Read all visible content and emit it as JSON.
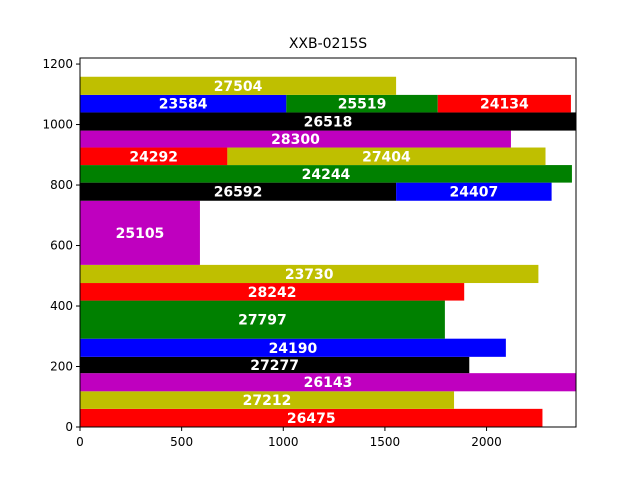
{
  "chart_data": {
    "type": "bar",
    "orientation": "horizontal",
    "title": "XXB-0215S",
    "xlabel": "",
    "ylabel": "",
    "xlim": [
      0,
      2440
    ],
    "ylim": [
      0,
      1220
    ],
    "xticks": [
      0,
      500,
      1000,
      1500,
      2000
    ],
    "yticks": [
      0,
      200,
      400,
      600,
      800,
      1000,
      1200
    ],
    "grid": false,
    "legend": "none",
    "bars": [
      {
        "label": "26475",
        "x_start": 0,
        "x_end": 2275,
        "y_start": 0,
        "y_end": 60,
        "color": "#ff0000"
      },
      {
        "label": "27212",
        "x_start": 0,
        "x_end": 1840,
        "y_start": 60,
        "y_end": 118,
        "color": "#bfbf00"
      },
      {
        "label": "26143",
        "x_start": 0,
        "x_end": 2440,
        "y_start": 118,
        "y_end": 178,
        "color": "#bf00bf"
      },
      {
        "label": "27277",
        "x_start": 0,
        "x_end": 1915,
        "y_start": 178,
        "y_end": 232,
        "color": "#000000"
      },
      {
        "label": "24190",
        "x_start": 0,
        "x_end": 2095,
        "y_start": 232,
        "y_end": 292,
        "color": "#0000ff"
      },
      {
        "label": "27797",
        "x_start": 0,
        "x_end": 1795,
        "y_start": 292,
        "y_end": 418,
        "color": "#008000"
      },
      {
        "label": "28242",
        "x_start": 0,
        "x_end": 1890,
        "y_start": 418,
        "y_end": 476,
        "color": "#ff0000"
      },
      {
        "label": "23730",
        "x_start": 0,
        "x_end": 2255,
        "y_start": 476,
        "y_end": 536,
        "color": "#bfbf00"
      },
      {
        "label": "25105",
        "x_start": 0,
        "x_end": 590,
        "y_start": 536,
        "y_end": 748,
        "color": "#bf00bf"
      },
      {
        "label": "26592",
        "x_start": 0,
        "x_end": 1555,
        "y_start": 748,
        "y_end": 808,
        "color": "#000000"
      },
      {
        "label": "24407",
        "x_start": 1555,
        "x_end": 2320,
        "y_start": 748,
        "y_end": 808,
        "color": "#0000ff"
      },
      {
        "label": "24244",
        "x_start": 0,
        "x_end": 2420,
        "y_start": 808,
        "y_end": 866,
        "color": "#008000"
      },
      {
        "label": "24292",
        "x_start": 0,
        "x_end": 725,
        "y_start": 866,
        "y_end": 924,
        "color": "#ff0000"
      },
      {
        "label": "27404",
        "x_start": 725,
        "x_end": 2290,
        "y_start": 924,
        "y_end": 866,
        "color": "#bfbf00"
      },
      {
        "label": "28300",
        "x_start": 0,
        "x_end": 2120,
        "y_start": 924,
        "y_end": 980,
        "color": "#bf00bf"
      },
      {
        "label": "26518",
        "x_start": 0,
        "x_end": 2440,
        "y_start": 980,
        "y_end": 1040,
        "color": "#000000"
      },
      {
        "label": "23584",
        "x_start": 0,
        "x_end": 1015,
        "y_start": 1040,
        "y_end": 1098,
        "color": "#0000ff"
      },
      {
        "label": "25519",
        "x_start": 1015,
        "x_end": 1760,
        "y_start": 1040,
        "y_end": 1098,
        "color": "#008000"
      },
      {
        "label": "24134",
        "x_start": 1760,
        "x_end": 2415,
        "y_start": 1040,
        "y_end": 1098,
        "color": "#ff0000"
      },
      {
        "label": "27504",
        "x_start": 0,
        "x_end": 1555,
        "y_start": 1098,
        "y_end": 1158,
        "color": "#bfbf00"
      }
    ]
  }
}
